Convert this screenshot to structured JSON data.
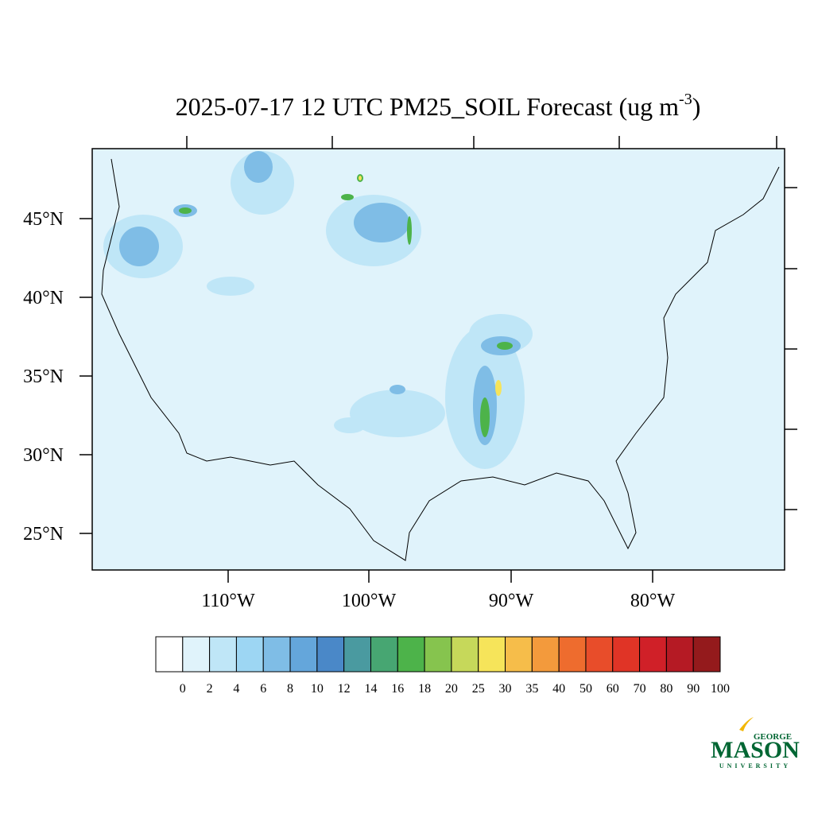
{
  "title": {
    "main": "2025-07-17 12 UTC PM25_SOIL Forecast (ug m",
    "superscript": "-3",
    "close": ")"
  },
  "lat_labels": [
    "45°N",
    "40°N",
    "35°N",
    "30°N",
    "25°N"
  ],
  "lon_labels": [
    "110°W",
    "100°W",
    "90°W",
    "80°W"
  ],
  "colorbar": {
    "levels": [
      0,
      2,
      4,
      6,
      8,
      10,
      12,
      14,
      16,
      18,
      20,
      25,
      30,
      35,
      40,
      50,
      60,
      70,
      80,
      90,
      100
    ],
    "colors": [
      "#ffffff",
      "#e0f3fb",
      "#bfe6f7",
      "#9dd6f3",
      "#7fbde6",
      "#64a6db",
      "#4a88c8",
      "#4a9aa0",
      "#47a672",
      "#4db34a",
      "#86c44e",
      "#c6d85a",
      "#f6e45a",
      "#f6bd4a",
      "#f39a3c",
      "#ee6c2e",
      "#e84d2a",
      "#e03426",
      "#d02028",
      "#b51a24",
      "#941a1c"
    ]
  },
  "logo": {
    "top": "GEORGE",
    "main": "MASON",
    "bottom": "UNIVERSITY"
  }
}
